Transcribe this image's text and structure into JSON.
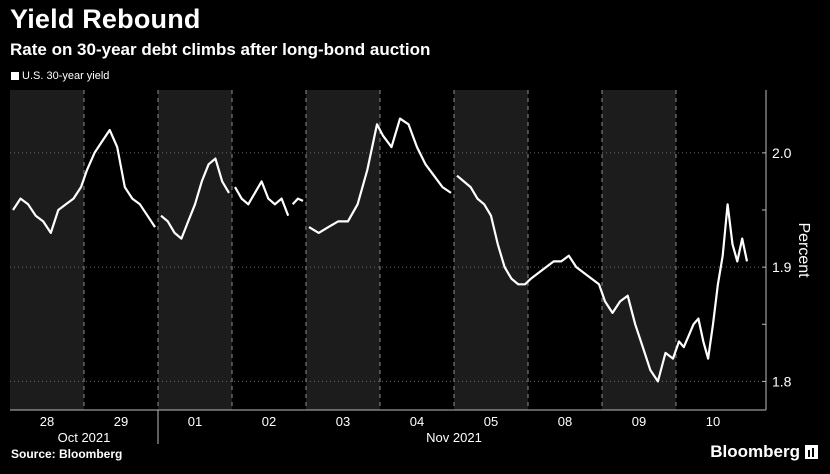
{
  "header": {
    "title": "Yield Rebound",
    "subtitle": "Rate on 30-year debt climbs after long-bond auction"
  },
  "footer": {
    "source": "Source: Bloomberg",
    "brand": "Bloomberg"
  },
  "colors": {
    "background": "#000000",
    "shade": "#1c1c1c",
    "line": "#ffffff"
  },
  "chart_data": {
    "type": "line",
    "title": "Yield Rebound",
    "subtitle": "Rate on 30-year debt climbs after long-bond auction",
    "ylabel": "Percent",
    "ylim": [
      1.775,
      2.055
    ],
    "yticks": [
      1.8,
      1.9,
      2.0
    ],
    "ytick_labels": [
      "1.8",
      "1.9",
      "2.0"
    ],
    "gridlines": "dotted horizontal at y ticks",
    "legend": "top-left",
    "days": [
      "28",
      "29",
      "01",
      "02",
      "03",
      "04",
      "05",
      "08",
      "09",
      "10"
    ],
    "shaded_days": [
      "28",
      "01",
      "03",
      "05",
      "09"
    ],
    "months": [
      {
        "label": "Oct 2021",
        "days": [
          "28",
          "29"
        ]
      },
      {
        "label": "Nov 2021",
        "days": [
          "01",
          "02",
          "03",
          "04",
          "05",
          "08",
          "09",
          "10"
        ]
      }
    ],
    "series": [
      {
        "name": "U.S. 30-year yield",
        "segments": [
          [
            [
              "28",
              1.95
            ],
            [
              "28",
              1.96
            ],
            [
              "28",
              1.955
            ],
            [
              "28",
              1.945
            ],
            [
              "28",
              1.94
            ],
            [
              "28",
              1.93
            ],
            [
              "28",
              1.95
            ],
            [
              "28",
              1.955
            ],
            [
              "28",
              1.96
            ],
            [
              "28",
              1.97
            ],
            [
              "29",
              1.985
            ],
            [
              "29",
              2.0
            ],
            [
              "29",
              2.01
            ],
            [
              "29",
              2.02
            ],
            [
              "29",
              2.005
            ],
            [
              "29",
              1.97
            ],
            [
              "29",
              1.96
            ],
            [
              "29",
              1.955
            ],
            [
              "29",
              1.945
            ],
            [
              "29",
              1.935
            ]
          ],
          [
            [
              "01",
              1.945
            ],
            [
              "01",
              1.94
            ],
            [
              "01",
              1.93
            ],
            [
              "01",
              1.925
            ],
            [
              "01",
              1.94
            ],
            [
              "01",
              1.955
            ],
            [
              "01",
              1.975
            ],
            [
              "01",
              1.99
            ],
            [
              "01",
              1.995
            ],
            [
              "01",
              1.975
            ],
            [
              "01",
              1.965
            ]
          ],
          [
            [
              "02",
              1.97
            ],
            [
              "02",
              1.96
            ],
            [
              "02",
              1.955
            ],
            [
              "02",
              1.965
            ],
            [
              "02",
              1.975
            ],
            [
              "02",
              1.96
            ],
            [
              "02",
              1.955
            ],
            [
              "02",
              1.96
            ],
            [
              "02",
              1.945
            ]
          ],
          [
            [
              "02",
              1.955
            ],
            [
              "02",
              1.96
            ],
            [
              "02",
              1.958
            ]
          ],
          [
            [
              "03",
              1.935
            ],
            [
              "03",
              1.93
            ],
            [
              "03",
              1.935
            ],
            [
              "03",
              1.94
            ],
            [
              "03",
              1.94
            ],
            [
              "03",
              1.955
            ],
            [
              "03",
              1.985
            ],
            [
              "03",
              2.025
            ],
            [
              "04",
              2.015
            ],
            [
              "04",
              2.005
            ],
            [
              "04",
              2.03
            ],
            [
              "04",
              2.025
            ],
            [
              "04",
              2.005
            ],
            [
              "04",
              1.99
            ],
            [
              "04",
              1.98
            ],
            [
              "04",
              1.97
            ],
            [
              "04",
              1.965
            ]
          ],
          [
            [
              "05",
              1.98
            ],
            [
              "05",
              1.975
            ],
            [
              "05",
              1.97
            ],
            [
              "05",
              1.96
            ],
            [
              "05",
              1.955
            ],
            [
              "05",
              1.945
            ],
            [
              "05",
              1.92
            ],
            [
              "05",
              1.9
            ],
            [
              "05",
              1.89
            ],
            [
              "05",
              1.885
            ],
            [
              "05",
              1.885
            ],
            [
              "08",
              1.89
            ],
            [
              "08",
              1.895
            ],
            [
              "08",
              1.9
            ],
            [
              "08",
              1.905
            ],
            [
              "08",
              1.905
            ],
            [
              "08",
              1.91
            ],
            [
              "08",
              1.9
            ],
            [
              "08",
              1.895
            ],
            [
              "08",
              1.89
            ],
            [
              "08",
              1.885
            ],
            [
              "09",
              1.87
            ],
            [
              "09",
              1.86
            ],
            [
              "09",
              1.87
            ],
            [
              "09",
              1.875
            ],
            [
              "09",
              1.85
            ],
            [
              "09",
              1.83
            ],
            [
              "09",
              1.81
            ],
            [
              "09",
              1.8
            ],
            [
              "09",
              1.825
            ],
            [
              "09",
              1.82
            ],
            [
              "10",
              1.835
            ],
            [
              "10",
              1.83
            ],
            [
              "10",
              1.84
            ],
            [
              "10",
              1.85
            ],
            [
              "10",
              1.855
            ],
            [
              "10",
              1.835
            ],
            [
              "10",
              1.82
            ],
            [
              "10",
              1.85
            ],
            [
              "10",
              1.885
            ],
            [
              "10",
              1.91
            ],
            [
              "10",
              1.955
            ],
            [
              "10",
              1.92
            ],
            [
              "10",
              1.905
            ],
            [
              "10",
              1.925
            ],
            [
              "10",
              1.905
            ]
          ]
        ]
      }
    ]
  }
}
